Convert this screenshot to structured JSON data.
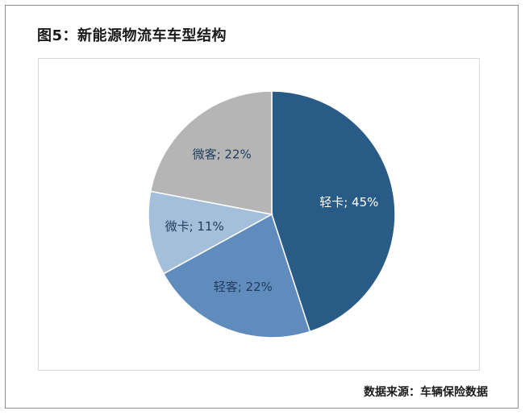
{
  "title": "图5：新能源物流车车型结构",
  "source": "数据来源：车辆保险数据",
  "chart_data": {
    "type": "pie",
    "title": "",
    "slices": [
      {
        "label": "轻卡",
        "value": 45,
        "display": "轻卡; 45%",
        "color": "#295b87",
        "label_color": "#ffffff"
      },
      {
        "label": "轻客",
        "value": 22,
        "display": "轻客; 22%",
        "color": "#5f8cbc",
        "label_color": "#1f3c5c"
      },
      {
        "label": "微卡",
        "value": 11,
        "display": "微卡; 11%",
        "color": "#a3bfd9",
        "label_color": "#1f3c5c"
      },
      {
        "label": "微客",
        "value": 22,
        "display": "微客; 22%",
        "color": "#b5b5b5",
        "label_color": "#1f3c5c"
      }
    ],
    "start_angle": "12 o'clock",
    "direction": "clockwise",
    "legend": "none",
    "data_labels": "inside"
  }
}
